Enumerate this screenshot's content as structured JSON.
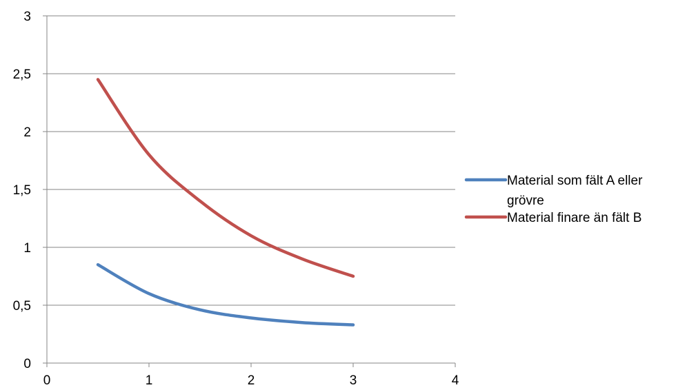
{
  "chart_data": {
    "type": "line",
    "title": "",
    "xlabel": "",
    "ylabel": "",
    "xlim": [
      0,
      4
    ],
    "ylim": [
      0,
      3
    ],
    "x_ticks": [
      0,
      1,
      2,
      3,
      4
    ],
    "x_tick_labels": [
      "0",
      "1",
      "2",
      "3",
      "4"
    ],
    "y_ticks": [
      0,
      0.5,
      1,
      1.5,
      2,
      2.5,
      3
    ],
    "y_tick_labels": [
      "0",
      "0,5",
      "1",
      "1,5",
      "2",
      "2,5",
      "3"
    ],
    "grid": "horizontal",
    "legend_position": "right",
    "smooth": true,
    "series": [
      {
        "name": "Material som fält A eller grövre",
        "legend_lines": [
          "Material som fält A eller",
          "grövre"
        ],
        "color": "#4F81BD",
        "x": [
          0.5,
          1,
          1.5,
          2,
          2.5,
          3
        ],
        "y": [
          0.85,
          0.6,
          0.46,
          0.39,
          0.35,
          0.33
        ]
      },
      {
        "name": "Material finare än fält B",
        "legend_lines": [
          "Material finare än fält B"
        ],
        "color": "#C0504D",
        "x": [
          0.5,
          1,
          1.5,
          2,
          2.5,
          3
        ],
        "y": [
          2.45,
          1.8,
          1.4,
          1.1,
          0.9,
          0.75
        ]
      }
    ]
  }
}
